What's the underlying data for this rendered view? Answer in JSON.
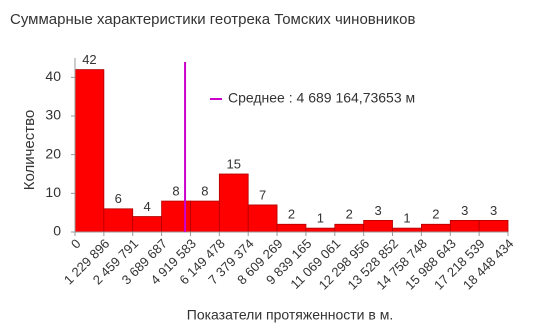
{
  "chart_data": {
    "type": "histogram",
    "title": "Суммарные характеристики геотрека Томских чиновников",
    "xlabel": "Показатели протяженности в м.",
    "ylabel": "Количество",
    "bins": [
      0,
      1229896,
      2459791,
      3689687,
      4919583,
      6149478,
      7379374,
      8609269,
      9839165,
      11069061,
      12298956,
      13528852,
      14758748,
      15988643,
      17218539,
      18448434
    ],
    "values": [
      42,
      6,
      4,
      8,
      8,
      15,
      7,
      2,
      1,
      2,
      3,
      1,
      2,
      3,
      3
    ],
    "color": "#ff0000",
    "xlim": [
      0,
      18448434
    ],
    "xticks": [
      0,
      {
        "value": 1229896,
        "label": "1 229 896"
      },
      {
        "value": 2459791,
        "label": "2 459 791"
      },
      {
        "value": 3689687,
        "label": "3 689 687"
      },
      {
        "value": 4919583,
        "label": "4 919 583"
      },
      {
        "value": 6149478,
        "label": "6 149 478"
      },
      {
        "value": 7379374,
        "label": "7 379 374"
      },
      {
        "value": 8609269,
        "label": "8 609 269"
      },
      {
        "value": 9839165,
        "label": "9 839 165"
      },
      {
        "value": 11069061,
        "label": "11 069 061"
      },
      {
        "value": 12298956,
        "label": "12 298 956"
      },
      {
        "value": 13528852,
        "label": "13 528 852"
      },
      {
        "value": 14758748,
        "label": "14 758 748"
      },
      {
        "value": 15988643,
        "label": "15 988 643"
      },
      {
        "value": 17218539,
        "label": "17 218 539"
      },
      {
        "value": 18448434,
        "label": "18 448 434"
      }
    ],
    "ylim": [
      0,
      45
    ],
    "yticks": [
      0,
      10,
      20,
      30,
      40
    ],
    "mean": {
      "value": 4689164.73653,
      "label": "Среднее : 4 689 164,73653 м",
      "color": "#cc00cc"
    }
  }
}
